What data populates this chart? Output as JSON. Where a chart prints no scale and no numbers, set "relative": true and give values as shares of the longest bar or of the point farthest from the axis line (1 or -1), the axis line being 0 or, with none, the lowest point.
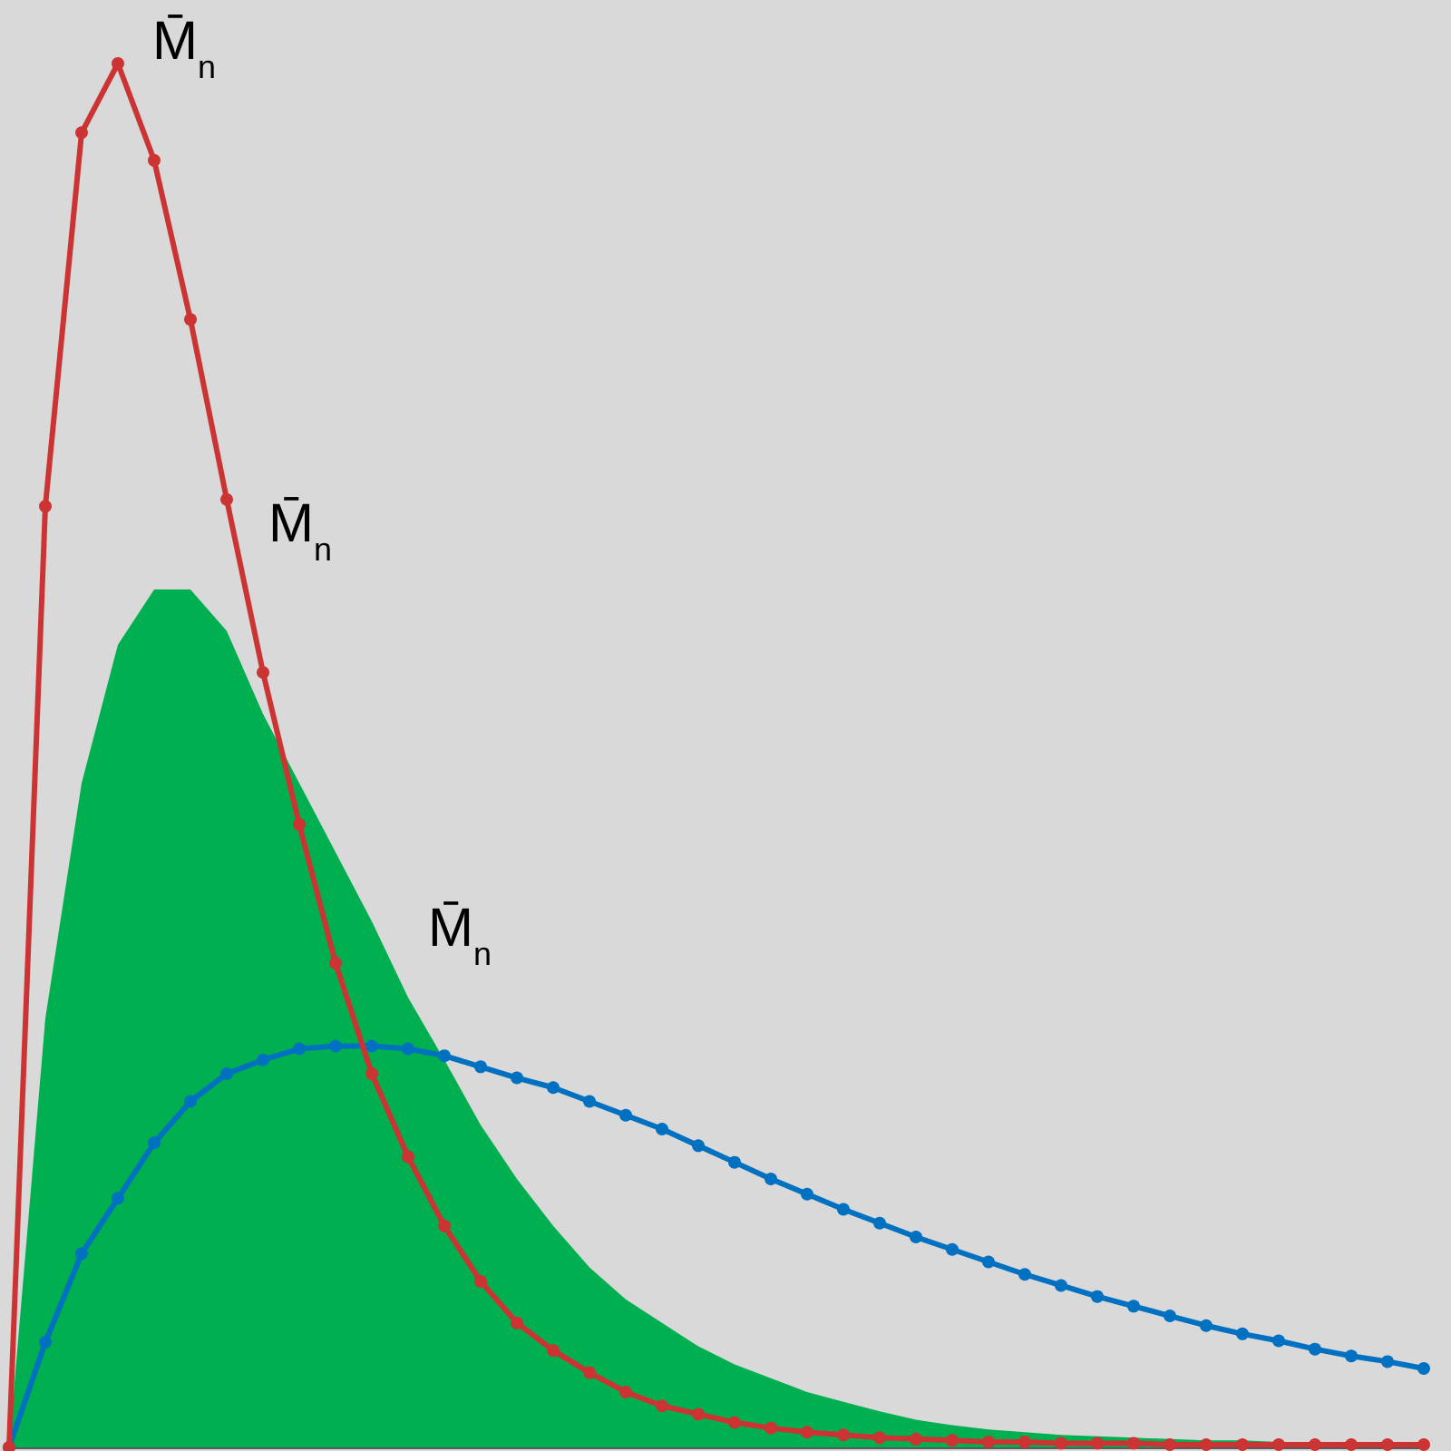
{
  "chart_data": {
    "type": "line",
    "relative": true,
    "categories": [
      null,
      null,
      null,
      null,
      null,
      null,
      null,
      null,
      null,
      null,
      null,
      null,
      null,
      null,
      null,
      null,
      null,
      null,
      null,
      null,
      null,
      null,
      null,
      null,
      null,
      null,
      null,
      null,
      null,
      null,
      null,
      null,
      null,
      null,
      null,
      null,
      null,
      null,
      null,
      null
    ],
    "tick_labels": false,
    "marker": "circle",
    "line_style": "solid",
    "series": [
      {
        "type": "area",
        "marker": "none",
        "color": "#00b050",
        "values": [
          0,
          0.31,
          0.48,
          0.58,
          0.62,
          0.62,
          0.59,
          0.53,
          0.48,
          0.43,
          0.38,
          0.325,
          0.28,
          0.233,
          0.194,
          0.16,
          0.13,
          0.107,
          0.09,
          0.073,
          0.06,
          0.05,
          0.04,
          0.033,
          0.026,
          0.02,
          0.016,
          0.013,
          0.011,
          0.009,
          0.008,
          0.007,
          0.006,
          0.005,
          0.005,
          0.004,
          0.004,
          0.004,
          0.003,
          0.003
        ]
      },
      {
        "color": "#0070c0",
        "values": [
          0,
          0.076,
          0.14,
          0.18,
          0.22,
          0.25,
          0.27,
          0.28,
          0.288,
          0.29,
          0.29,
          0.288,
          0.283,
          0.275,
          0.267,
          0.26,
          0.25,
          0.24,
          0.23,
          0.218,
          0.206,
          0.194,
          0.183,
          0.172,
          0.162,
          0.152,
          0.143,
          0.134,
          0.125,
          0.117,
          0.109,
          0.102,
          0.095,
          0.088,
          0.082,
          0.077,
          0.071,
          0.066,
          0.062,
          0.057
        ]
      },
      {
        "color": "#cc3333",
        "values": [
          0,
          0.68,
          0.95,
          1.0,
          0.93,
          0.815,
          0.685,
          0.56,
          0.45,
          0.35,
          0.27,
          0.21,
          0.16,
          0.12,
          0.09,
          0.07,
          0.054,
          0.04,
          0.03,
          0.024,
          0.018,
          0.014,
          0.011,
          0.009,
          0.007,
          0.006,
          0.005,
          0.004,
          0.004,
          0.003,
          0.003,
          0.003,
          0.002,
          0.002,
          0.002,
          0.002,
          0.002,
          0.002,
          0.002,
          0.002
        ]
      }
    ],
    "annotations": [
      "M̄$_{n}$",
      "M̄$_{n}$",
      "M̄$_{n}$"
    ]
  }
}
